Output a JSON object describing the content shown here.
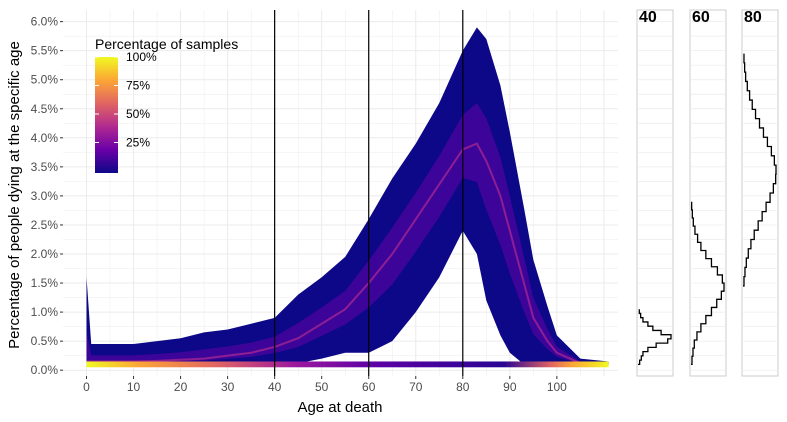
{
  "chart_data": {
    "type": "heatmap",
    "xlabel": "Age at death",
    "ylabel": "Percentage of people dying at the specific age",
    "x_ticks": [
      "0",
      "10",
      "20",
      "30",
      "40",
      "50",
      "60",
      "70",
      "80",
      "90",
      "100"
    ],
    "y_ticks": [
      "0.0%",
      "0.5%",
      "1.0%",
      "1.5%",
      "2.0%",
      "2.5%",
      "3.0%",
      "3.5%",
      "4.0%",
      "4.5%",
      "5.0%",
      "5.5%",
      "6.0%"
    ],
    "xlim": [
      -5,
      113
    ],
    "ylim": [
      -0.1,
      6.2
    ],
    "vertical_lines": [
      40,
      60,
      80
    ],
    "legend": {
      "title": "Percentage of samples",
      "labels": [
        "100%",
        "75%",
        "50%",
        "25%"
      ],
      "label_values": [
        100,
        75,
        50,
        25
      ],
      "colors": [
        "#0d0887",
        "#6a00a8",
        "#b12a90",
        "#e16462",
        "#fca636",
        "#f0f921"
      ]
    },
    "grid": true,
    "density_envelope": {
      "ages": [
        0,
        1,
        5,
        10,
        15,
        20,
        25,
        30,
        35,
        40,
        45,
        50,
        55,
        60,
        65,
        70,
        75,
        80,
        83,
        85,
        88,
        90,
        93,
        95,
        98,
        100,
        105,
        111
      ],
      "upper_pct": [
        1.6,
        0.45,
        0.45,
        0.45,
        0.5,
        0.55,
        0.65,
        0.7,
        0.8,
        0.9,
        1.3,
        1.6,
        1.95,
        2.6,
        3.3,
        3.9,
        4.6,
        5.5,
        5.9,
        5.7,
        4.9,
        4.1,
        2.8,
        1.9,
        1.1,
        0.6,
        0.2,
        0.15
      ],
      "lower_pct": [
        0.1,
        0.1,
        0.1,
        0.1,
        0.1,
        0.1,
        0.1,
        0.1,
        0.1,
        0.1,
        0.12,
        0.2,
        0.3,
        0.3,
        0.5,
        1.0,
        1.6,
        2.4,
        2.0,
        1.2,
        0.6,
        0.3,
        0.1,
        0.1,
        0.1,
        0.1,
        0.1,
        0.1
      ],
      "peak_pct": [
        0.15,
        0.15,
        0.15,
        0.15,
        0.16,
        0.18,
        0.2,
        0.25,
        0.3,
        0.4,
        0.55,
        0.8,
        1.05,
        1.5,
        2.0,
        2.6,
        3.2,
        3.8,
        3.9,
        3.6,
        3.0,
        2.4,
        1.5,
        0.9,
        0.5,
        0.3,
        0.12,
        0.12
      ]
    },
    "baseline_band": {
      "y_pct": 0.1,
      "x_start": 0,
      "x_end": 111
    },
    "panels": [
      {
        "label": "40",
        "y_start": 0.1,
        "y_end": 1.05,
        "density": [
          5,
          10,
          15,
          30,
          55,
          90,
          100,
          70,
          45,
          30,
          15,
          8,
          4
        ]
      },
      {
        "label": "60",
        "y_start": 0.1,
        "y_end": 2.9,
        "density": [
          3,
          6,
          10,
          18,
          30,
          45,
          62,
          78,
          92,
          100,
          95,
          80,
          62,
          45,
          30,
          20,
          12,
          7,
          4,
          2
        ]
      },
      {
        "label": "80",
        "y_start": 1.45,
        "y_end": 5.45,
        "density": [
          3,
          6,
          10,
          16,
          24,
          34,
          46,
          58,
          70,
          82,
          92,
          99,
          100,
          95,
          86,
          74,
          62,
          50,
          38,
          28,
          20,
          13,
          8,
          5,
          3
        ]
      }
    ]
  }
}
